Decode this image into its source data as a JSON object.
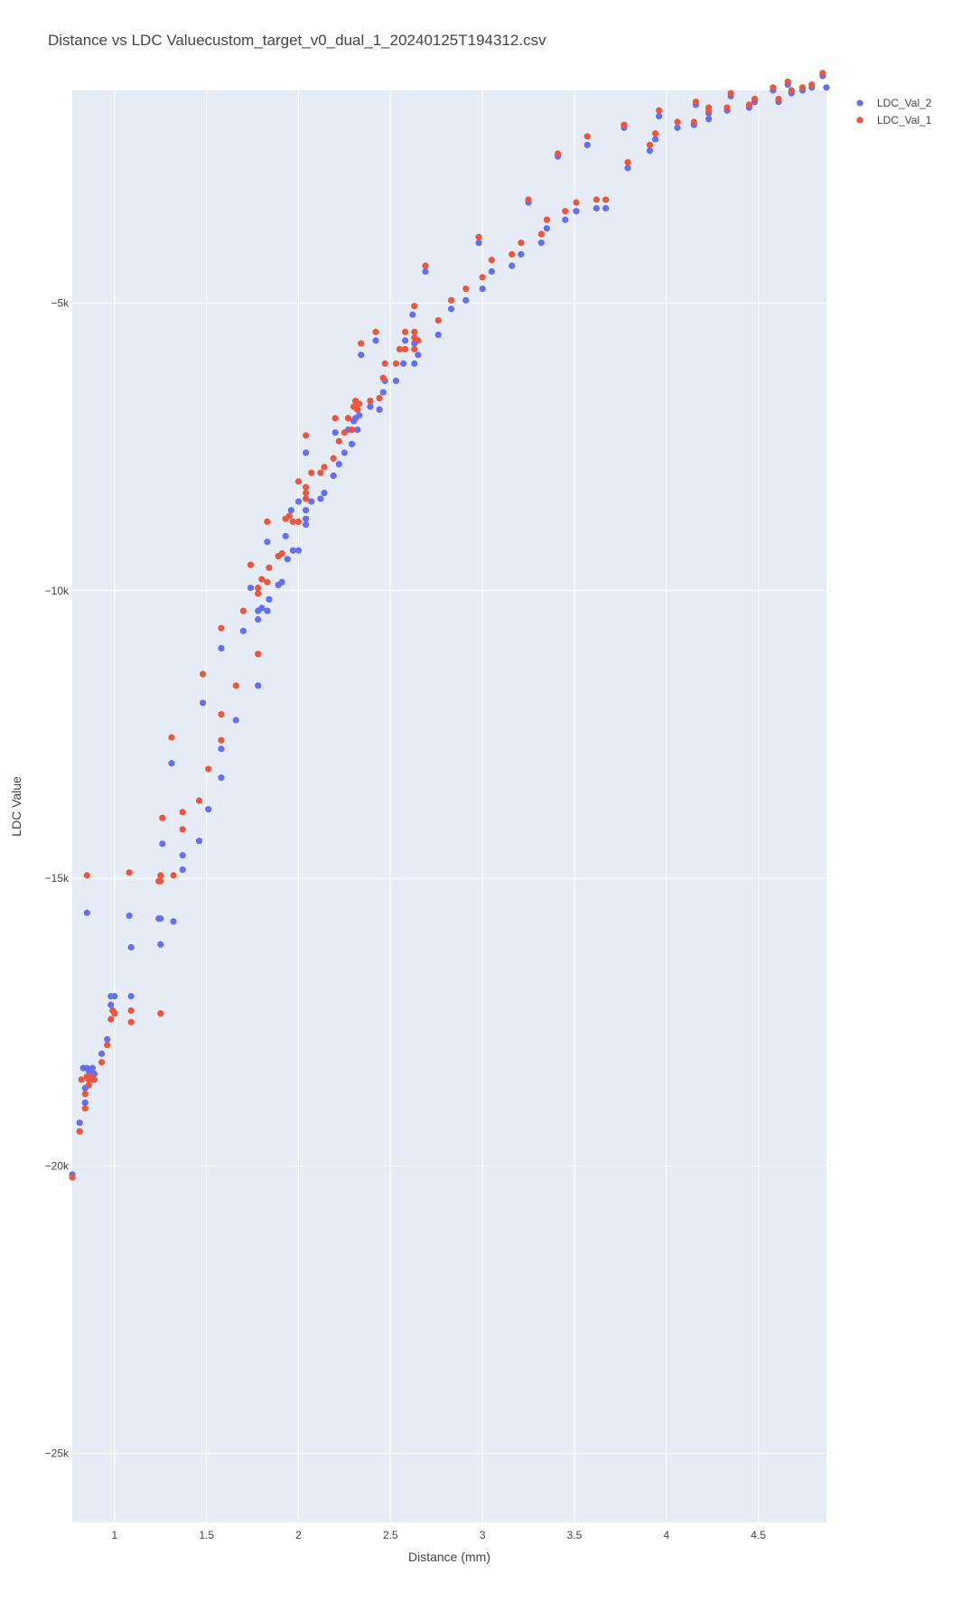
{
  "chart_data": {
    "type": "scatter",
    "title": "Distance vs LDC Valuecustom_target_v0_dual_1_20240125T194312.csv",
    "xlabel": "Distance (mm)",
    "ylabel": "LDC Value",
    "xlim": [
      0.77,
      4.87
    ],
    "ylim": [
      -26200,
      -1300
    ],
    "x_ticks": [
      1,
      1.5,
      2,
      2.5,
      3,
      3.5,
      4,
      4.5
    ],
    "x_tick_labels": [
      "1",
      "1.5",
      "2",
      "2.5",
      "3",
      "3.5",
      "4",
      "4.5"
    ],
    "y_ticks": [
      -5000,
      -10000,
      -15000,
      -20000,
      -25000
    ],
    "y_tick_labels": [
      "−5k",
      "−10k",
      "−15k",
      "−20k",
      "−25k"
    ],
    "grid": true,
    "legend_position": "top-right",
    "series": [
      {
        "name": "LDC_Val_2",
        "color": "#636efa",
        "points": [
          [
            0.77,
            -20150
          ],
          [
            0.81,
            -19250
          ],
          [
            0.83,
            -18300
          ],
          [
            0.84,
            -18650
          ],
          [
            0.84,
            -18900
          ],
          [
            0.85,
            -18300
          ],
          [
            0.86,
            -18350
          ],
          [
            0.87,
            -18400
          ],
          [
            0.88,
            -18300
          ],
          [
            0.89,
            -18400
          ],
          [
            0.85,
            -15600
          ],
          [
            0.93,
            -18050
          ],
          [
            0.96,
            -17800
          ],
          [
            0.98,
            -17200
          ],
          [
            0.98,
            -17050
          ],
          [
            1.0,
            -17050
          ],
          [
            1.08,
            -15650
          ],
          [
            1.09,
            -16200
          ],
          [
            1.09,
            -17050
          ],
          [
            1.24,
            -15700
          ],
          [
            1.25,
            -15700
          ],
          [
            1.25,
            -16150
          ],
          [
            1.26,
            -14400
          ],
          [
            1.31,
            -13000
          ],
          [
            1.32,
            -15750
          ],
          [
            1.37,
            -14600
          ],
          [
            1.37,
            -14850
          ],
          [
            1.46,
            -14350
          ],
          [
            1.48,
            -11950
          ],
          [
            1.51,
            -13800
          ],
          [
            1.58,
            -11000
          ],
          [
            1.58,
            -12750
          ],
          [
            1.58,
            -13250
          ],
          [
            1.66,
            -12250
          ],
          [
            1.7,
            -10700
          ],
          [
            1.74,
            -9950
          ],
          [
            1.78,
            -10500
          ],
          [
            1.78,
            -10350
          ],
          [
            1.78,
            -11650
          ],
          [
            1.8,
            -10300
          ],
          [
            1.83,
            -10350
          ],
          [
            1.83,
            -9150
          ],
          [
            1.84,
            -10150
          ],
          [
            1.89,
            -9900
          ],
          [
            1.91,
            -9850
          ],
          [
            1.93,
            -9050
          ],
          [
            1.94,
            -9450
          ],
          [
            1.96,
            -8600
          ],
          [
            1.97,
            -9300
          ],
          [
            2.0,
            -9300
          ],
          [
            2.0,
            -8450
          ],
          [
            2.04,
            -8600
          ],
          [
            2.04,
            -8750
          ],
          [
            2.04,
            -8850
          ],
          [
            2.04,
            -7600
          ],
          [
            2.07,
            -8450
          ],
          [
            2.12,
            -8400
          ],
          [
            2.14,
            -8300
          ],
          [
            2.19,
            -8000
          ],
          [
            2.2,
            -7250
          ],
          [
            2.22,
            -7800
          ],
          [
            2.25,
            -7600
          ],
          [
            2.27,
            -7200
          ],
          [
            2.29,
            -7450
          ],
          [
            2.3,
            -7050
          ],
          [
            2.31,
            -7000
          ],
          [
            2.32,
            -7200
          ],
          [
            2.33,
            -6950
          ],
          [
            2.34,
            -5900
          ],
          [
            2.39,
            -6800
          ],
          [
            2.42,
            -5650
          ],
          [
            2.44,
            -6850
          ],
          [
            2.46,
            -6550
          ],
          [
            2.47,
            -6350
          ],
          [
            2.53,
            -6350
          ],
          [
            2.57,
            -6050
          ],
          [
            2.58,
            -5650
          ],
          [
            2.62,
            -5200
          ],
          [
            2.63,
            -5700
          ],
          [
            2.63,
            -6050
          ],
          [
            2.65,
            -5900
          ],
          [
            2.69,
            -4450
          ],
          [
            2.76,
            -5550
          ],
          [
            2.83,
            -5100
          ],
          [
            2.91,
            -4950
          ],
          [
            2.98,
            -3950
          ],
          [
            3.0,
            -4750
          ],
          [
            3.05,
            -4450
          ],
          [
            3.16,
            -4350
          ],
          [
            3.21,
            -4150
          ],
          [
            3.25,
            -3250
          ],
          [
            3.32,
            -3950
          ],
          [
            3.35,
            -3700
          ],
          [
            3.41,
            -2450
          ],
          [
            3.45,
            -3550
          ],
          [
            3.51,
            -3400
          ],
          [
            3.57,
            -2250
          ],
          [
            3.62,
            -3350
          ],
          [
            3.67,
            -3350
          ],
          [
            3.77,
            -1950
          ],
          [
            3.79,
            -2650
          ],
          [
            3.91,
            -2350
          ],
          [
            3.94,
            -2150
          ],
          [
            3.96,
            -1750
          ],
          [
            4.06,
            -1950
          ],
          [
            4.15,
            -1900
          ],
          [
            4.16,
            -1550
          ],
          [
            4.23,
            -1700
          ],
          [
            4.23,
            -1800
          ],
          [
            4.33,
            -1650
          ],
          [
            4.35,
            -1400
          ],
          [
            4.45,
            -1600
          ],
          [
            4.48,
            -1500
          ],
          [
            4.58,
            -1300
          ],
          [
            4.61,
            -1500
          ],
          [
            4.66,
            -1200
          ],
          [
            4.68,
            -1350
          ],
          [
            4.74,
            -1300
          ],
          [
            4.79,
            -1250
          ],
          [
            4.85,
            -1050
          ],
          [
            4.87,
            -1250
          ]
        ]
      },
      {
        "name": "LDC_Val_1",
        "color": "#ef553b",
        "points": [
          [
            0.77,
            -20200
          ],
          [
            0.81,
            -19400
          ],
          [
            0.82,
            -18500
          ],
          [
            0.84,
            -18750
          ],
          [
            0.84,
            -19000
          ],
          [
            0.85,
            -18450
          ],
          [
            0.86,
            -18500
          ],
          [
            0.86,
            -18600
          ],
          [
            0.87,
            -18450
          ],
          [
            0.88,
            -18500
          ],
          [
            0.89,
            -18500
          ],
          [
            0.85,
            -14950
          ],
          [
            0.93,
            -18200
          ],
          [
            0.96,
            -17900
          ],
          [
            0.98,
            -17450
          ],
          [
            0.99,
            -17300
          ],
          [
            1.0,
            -17350
          ],
          [
            1.08,
            -14900
          ],
          [
            1.09,
            -17300
          ],
          [
            1.09,
            -17500
          ],
          [
            1.24,
            -15050
          ],
          [
            1.25,
            -15050
          ],
          [
            1.25,
            -14950
          ],
          [
            1.25,
            -17350
          ],
          [
            1.26,
            -13950
          ],
          [
            1.31,
            -12550
          ],
          [
            1.32,
            -14950
          ],
          [
            1.37,
            -13850
          ],
          [
            1.37,
            -14150
          ],
          [
            1.46,
            -13650
          ],
          [
            1.48,
            -11450
          ],
          [
            1.51,
            -13100
          ],
          [
            1.58,
            -10650
          ],
          [
            1.58,
            -12150
          ],
          [
            1.58,
            -12600
          ],
          [
            1.66,
            -11650
          ],
          [
            1.7,
            -10350
          ],
          [
            1.74,
            -9550
          ],
          [
            1.78,
            -9950
          ],
          [
            1.78,
            -10050
          ],
          [
            1.78,
            -11100
          ],
          [
            1.8,
            -9800
          ],
          [
            1.83,
            -9850
          ],
          [
            1.83,
            -8800
          ],
          [
            1.84,
            -9600
          ],
          [
            1.89,
            -9400
          ],
          [
            1.91,
            -9350
          ],
          [
            1.93,
            -8750
          ],
          [
            1.95,
            -8700
          ],
          [
            1.97,
            -8800
          ],
          [
            2.0,
            -8800
          ],
          [
            2.0,
            -8100
          ],
          [
            2.04,
            -8200
          ],
          [
            2.04,
            -8300
          ],
          [
            2.04,
            -8400
          ],
          [
            2.04,
            -7300
          ],
          [
            2.07,
            -7950
          ],
          [
            2.12,
            -7950
          ],
          [
            2.14,
            -7850
          ],
          [
            2.19,
            -7700
          ],
          [
            2.2,
            -7000
          ],
          [
            2.22,
            -7400
          ],
          [
            2.25,
            -7250
          ],
          [
            2.27,
            -7000
          ],
          [
            2.29,
            -7200
          ],
          [
            2.3,
            -6800
          ],
          [
            2.31,
            -6700
          ],
          [
            2.32,
            -6850
          ],
          [
            2.33,
            -6750
          ],
          [
            2.34,
            -5700
          ],
          [
            2.39,
            -6700
          ],
          [
            2.42,
            -5500
          ],
          [
            2.44,
            -6650
          ],
          [
            2.46,
            -6300
          ],
          [
            2.47,
            -6050
          ],
          [
            2.53,
            -6050
          ],
          [
            2.55,
            -5800
          ],
          [
            2.58,
            -5500
          ],
          [
            2.58,
            -5800
          ],
          [
            2.63,
            -5050
          ],
          [
            2.63,
            -5500
          ],
          [
            2.63,
            -5600
          ],
          [
            2.63,
            -5800
          ],
          [
            2.65,
            -5650
          ],
          [
            2.69,
            -4350
          ],
          [
            2.76,
            -5300
          ],
          [
            2.83,
            -4950
          ],
          [
            2.91,
            -4750
          ],
          [
            2.98,
            -3850
          ],
          [
            3.0,
            -4550
          ],
          [
            3.05,
            -4250
          ],
          [
            3.16,
            -4150
          ],
          [
            3.21,
            -3950
          ],
          [
            3.25,
            -3200
          ],
          [
            3.32,
            -3800
          ],
          [
            3.35,
            -3550
          ],
          [
            3.41,
            -2400
          ],
          [
            3.45,
            -3400
          ],
          [
            3.51,
            -3250
          ],
          [
            3.57,
            -2100
          ],
          [
            3.62,
            -3200
          ],
          [
            3.67,
            -3200
          ],
          [
            3.77,
            -1900
          ],
          [
            3.79,
            -2550
          ],
          [
            3.91,
            -2250
          ],
          [
            3.94,
            -2050
          ],
          [
            3.96,
            -1650
          ],
          [
            4.06,
            -1850
          ],
          [
            4.15,
            -1850
          ],
          [
            4.16,
            -1500
          ],
          [
            4.23,
            -1650
          ],
          [
            4.23,
            -1600
          ],
          [
            4.33,
            -1600
          ],
          [
            4.35,
            -1350
          ],
          [
            4.45,
            -1550
          ],
          [
            4.48,
            -1450
          ],
          [
            4.58,
            -1250
          ],
          [
            4.61,
            -1450
          ],
          [
            4.66,
            -1150
          ],
          [
            4.68,
            -1300
          ],
          [
            4.74,
            -1250
          ],
          [
            4.79,
            -1200
          ],
          [
            4.85,
            -1000
          ]
        ]
      }
    ]
  }
}
